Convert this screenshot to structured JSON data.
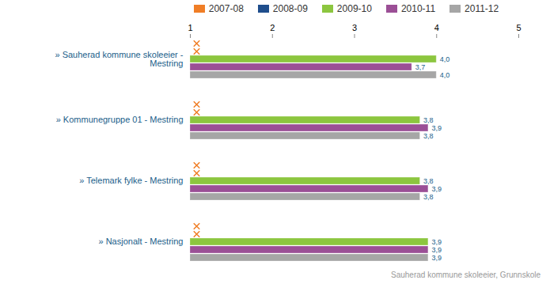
{
  "chart_data": {
    "type": "bar",
    "orientation": "horizontal",
    "categories": [
      "» Sauherad kommune skoleeier - Mestring",
      "» Kommunegruppe 01 - Mestring",
      "» Telemark fylke - Mestring",
      "» Nasjonalt - Mestring"
    ],
    "series": [
      {
        "name": "2007-08",
        "color": "#f07e26",
        "values": [
          null,
          null,
          null,
          null
        ]
      },
      {
        "name": "2008-09",
        "color": "#1f4e8c",
        "values": [
          null,
          null,
          null,
          null
        ]
      },
      {
        "name": "2009-10",
        "color": "#8cc63f",
        "values": [
          4.0,
          3.8,
          3.8,
          3.9
        ],
        "value_labels": [
          "4,0",
          "3,8",
          "3,8",
          "3,9"
        ]
      },
      {
        "name": "2010-11",
        "color": "#9b4f96",
        "values": [
          3.7,
          3.9,
          3.9,
          3.9
        ],
        "value_labels": [
          "3,7",
          "3,9",
          "3,9",
          "3,9"
        ]
      },
      {
        "name": "2011-12",
        "color": "#a6a6a6",
        "values": [
          4.0,
          3.8,
          3.8,
          3.9
        ],
        "value_labels": [
          "4,0",
          "3,8",
          "3,8",
          "3,9"
        ]
      }
    ],
    "xlim": [
      1,
      5
    ],
    "xticks": [
      1,
      2,
      3,
      4,
      5
    ],
    "grid": false,
    "legend": "top",
    "data_labels": true,
    "caption": "Sauherad kommune skoleeier, Grunnskole"
  }
}
